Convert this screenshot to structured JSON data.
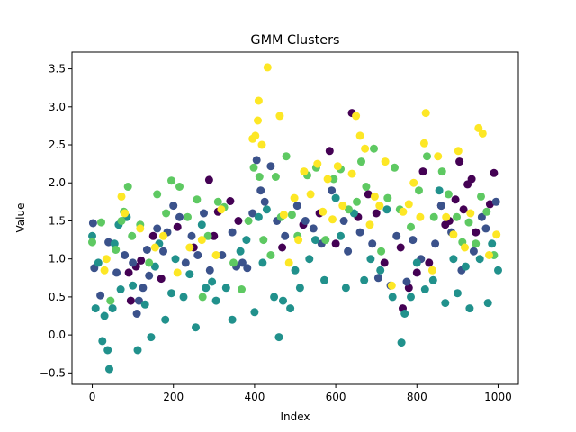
{
  "chart_data": {
    "type": "scatter",
    "title": "GMM Clusters",
    "xlabel": "Index",
    "ylabel": "Value",
    "xlim": [
      -50,
      1050
    ],
    "ylim": [
      -0.65,
      3.72
    ],
    "xticks": [
      0,
      200,
      400,
      600,
      800,
      1000
    ],
    "yticks": [
      -0.5,
      0.0,
      0.5,
      1.0,
      1.5,
      2.0,
      2.5,
      3.0,
      3.5
    ],
    "ytick_labels": [
      "−0.5",
      "0.0",
      "0.5",
      "1.0",
      "1.5",
      "2.0",
      "2.5",
      "3.0",
      "3.5"
    ],
    "grid": false,
    "legend": "none",
    "n_points": 1000,
    "cluster_colors": [
      "#440154",
      "#3b528b",
      "#21918c",
      "#5ec962",
      "#fde725"
    ],
    "series": [
      {
        "cluster": 0,
        "color": "#440154",
        "points": [
          [
            90,
            0.82
          ],
          [
            95,
            0.45
          ],
          [
            108,
            0.9
          ],
          [
            120,
            0.98
          ],
          [
            150,
            1.3
          ],
          [
            170,
            0.74
          ],
          [
            210,
            1.42
          ],
          [
            250,
            1.15
          ],
          [
            300,
            1.3
          ],
          [
            288,
            2.04
          ],
          [
            310,
            1.62
          ],
          [
            340,
            1.76
          ],
          [
            360,
            1.5
          ],
          [
            468,
            1.15
          ],
          [
            520,
            1.45
          ],
          [
            560,
            1.6
          ],
          [
            585,
            2.42
          ],
          [
            600,
            1.2
          ],
          [
            640,
            2.92
          ],
          [
            655,
            1.55
          ],
          [
            680,
            1.85
          ],
          [
            700,
            1.6
          ],
          [
            720,
            0.95
          ],
          [
            760,
            1.15
          ],
          [
            765,
            0.35
          ],
          [
            780,
            0.62
          ],
          [
            800,
            0.82
          ],
          [
            815,
            2.15
          ],
          [
            830,
            0.95
          ],
          [
            860,
            1.7
          ],
          [
            870,
            1.45
          ],
          [
            880,
            1.5
          ],
          [
            895,
            1.78
          ],
          [
            905,
            2.28
          ],
          [
            915,
            1.65
          ],
          [
            925,
            1.98
          ],
          [
            935,
            2.05
          ],
          [
            945,
            1.35
          ],
          [
            980,
            1.72
          ],
          [
            990,
            2.13
          ]
        ]
      },
      {
        "cluster": 1,
        "color": "#3b528b",
        "points": [
          [
            2,
            1.47
          ],
          [
            5,
            0.88
          ],
          [
            20,
            0.52
          ],
          [
            40,
            1.22
          ],
          [
            60,
            0.82
          ],
          [
            80,
            1.05
          ],
          [
            100,
            0.95
          ],
          [
            110,
            0.28
          ],
          [
            115,
            0.45
          ],
          [
            125,
            0.62
          ],
          [
            135,
            1.12
          ],
          [
            140,
            0.78
          ],
          [
            160,
            1.4
          ],
          [
            175,
            1.1
          ],
          [
            185,
            1.35
          ],
          [
            200,
            1.7
          ],
          [
            215,
            1.55
          ],
          [
            230,
            0.95
          ],
          [
            245,
            1.3
          ],
          [
            260,
            1.05
          ],
          [
            275,
            1.6
          ],
          [
            290,
            0.85
          ],
          [
            320,
            1.05
          ],
          [
            345,
            1.35
          ],
          [
            355,
            0.9
          ],
          [
            370,
            0.95
          ],
          [
            382,
            0.88
          ],
          [
            395,
            1.6
          ],
          [
            405,
            2.3
          ],
          [
            415,
            1.9
          ],
          [
            425,
            1.75
          ],
          [
            440,
            2.22
          ],
          [
            455,
            1.5
          ],
          [
            475,
            1.3
          ],
          [
            505,
            1.7
          ],
          [
            525,
            1.5
          ],
          [
            545,
            1.4
          ],
          [
            565,
            1.2
          ],
          [
            590,
            1.9
          ],
          [
            620,
            1.5
          ],
          [
            630,
            1.1
          ],
          [
            660,
            1.35
          ],
          [
            690,
            1.2
          ],
          [
            705,
            0.75
          ],
          [
            735,
            0.65
          ],
          [
            750,
            1.3
          ],
          [
            775,
            0.7
          ],
          [
            790,
            1.25
          ],
          [
            810,
            1.0
          ],
          [
            845,
            1.2
          ],
          [
            860,
            1.7
          ],
          [
            885,
            1.35
          ],
          [
            910,
            0.85
          ],
          [
            940,
            1.1
          ],
          [
            960,
            1.55
          ],
          [
            970,
            1.4
          ],
          [
            995,
            1.75
          ]
        ]
      },
      {
        "cluster": 2,
        "color": "#21918c",
        "points": [
          [
            0,
            1.3
          ],
          [
            8,
            0.35
          ],
          [
            15,
            0.95
          ],
          [
            25,
            -0.08
          ],
          [
            30,
            0.25
          ],
          [
            38,
            -0.2
          ],
          [
            42,
            -0.45
          ],
          [
            50,
            0.35
          ],
          [
            55,
            1.2
          ],
          [
            65,
            1.45
          ],
          [
            70,
            0.6
          ],
          [
            85,
            1.55
          ],
          [
            100,
            0.65
          ],
          [
            112,
            -0.2
          ],
          [
            130,
            0.4
          ],
          [
            145,
            -0.03
          ],
          [
            155,
            0.9
          ],
          [
            165,
            1.2
          ],
          [
            180,
            0.2
          ],
          [
            195,
            0.55
          ],
          [
            205,
            1.0
          ],
          [
            225,
            0.5
          ],
          [
            240,
            0.8
          ],
          [
            255,
            0.1
          ],
          [
            270,
            1.45
          ],
          [
            280,
            0.62
          ],
          [
            295,
            0.7
          ],
          [
            305,
            0.45
          ],
          [
            330,
            0.62
          ],
          [
            345,
            0.2
          ],
          [
            365,
            1.1
          ],
          [
            380,
            1.25
          ],
          [
            400,
            0.3
          ],
          [
            410,
            1.55
          ],
          [
            420,
            0.95
          ],
          [
            430,
            1.65
          ],
          [
            448,
            0.5
          ],
          [
            460,
            -0.03
          ],
          [
            470,
            0.45
          ],
          [
            488,
            0.35
          ],
          [
            500,
            0.85
          ],
          [
            512,
            0.62
          ],
          [
            535,
            1.0
          ],
          [
            550,
            1.25
          ],
          [
            572,
            0.72
          ],
          [
            600,
            1.8
          ],
          [
            612,
            1.3
          ],
          [
            625,
            0.62
          ],
          [
            645,
            1.6
          ],
          [
            670,
            0.72
          ],
          [
            686,
            1.0
          ],
          [
            710,
            0.85
          ],
          [
            726,
            1.65
          ],
          [
            740,
            0.5
          ],
          [
            762,
            -0.1
          ],
          [
            770,
            0.28
          ],
          [
            785,
            0.5
          ],
          [
            800,
            0.95
          ],
          [
            820,
            0.6
          ],
          [
            840,
            0.72
          ],
          [
            855,
            1.9
          ],
          [
            870,
            0.42
          ],
          [
            890,
            1.0
          ],
          [
            900,
            0.55
          ],
          [
            920,
            0.9
          ],
          [
            930,
            0.35
          ],
          [
            955,
            1.0
          ],
          [
            975,
            0.42
          ],
          [
            985,
            1.2
          ],
          [
            1000,
            0.85
          ]
        ]
      },
      {
        "cluster": 3,
        "color": "#5ec962",
        "points": [
          [
            0,
            1.22
          ],
          [
            22,
            1.48
          ],
          [
            45,
            0.45
          ],
          [
            58,
            1.12
          ],
          [
            72,
            1.5
          ],
          [
            78,
            1.62
          ],
          [
            88,
            1.95
          ],
          [
            98,
            1.3
          ],
          [
            118,
            1.45
          ],
          [
            140,
            0.95
          ],
          [
            160,
            1.85
          ],
          [
            182,
            1.6
          ],
          [
            195,
            2.03
          ],
          [
            215,
            1.95
          ],
          [
            235,
            1.55
          ],
          [
            258,
            1.78
          ],
          [
            272,
            0.5
          ],
          [
            285,
            1.3
          ],
          [
            310,
            1.75
          ],
          [
            325,
            1.68
          ],
          [
            348,
            0.95
          ],
          [
            368,
            0.6
          ],
          [
            385,
            1.5
          ],
          [
            398,
            2.2
          ],
          [
            412,
            2.08
          ],
          [
            422,
            1.25
          ],
          [
            440,
            1.05
          ],
          [
            452,
            2.08
          ],
          [
            465,
            1.55
          ],
          [
            478,
            2.35
          ],
          [
            492,
            1.58
          ],
          [
            506,
            1.3
          ],
          [
            530,
            2.1
          ],
          [
            552,
            2.2
          ],
          [
            575,
            1.25
          ],
          [
            595,
            2.05
          ],
          [
            612,
            2.18
          ],
          [
            632,
            1.65
          ],
          [
            652,
            1.75
          ],
          [
            663,
            2.28
          ],
          [
            675,
            1.95
          ],
          [
            694,
            2.45
          ],
          [
            712,
            1.1
          ],
          [
            728,
            1.8
          ],
          [
            745,
            2.2
          ],
          [
            758,
            1.65
          ],
          [
            785,
            1.42
          ],
          [
            805,
            1.9
          ],
          [
            825,
            2.35
          ],
          [
            842,
            1.55
          ],
          [
            862,
            2.15
          ],
          [
            878,
            1.85
          ],
          [
            898,
            1.55
          ],
          [
            912,
            1.22
          ],
          [
            928,
            1.48
          ],
          [
            945,
            1.2
          ],
          [
            958,
            1.82
          ],
          [
            972,
            1.62
          ],
          [
            990,
            1.05
          ]
        ]
      },
      {
        "cluster": 4,
        "color": "#fde725",
        "points": [
          [
            30,
            0.85
          ],
          [
            35,
            1.0
          ],
          [
            72,
            1.82
          ],
          [
            80,
            1.6
          ],
          [
            118,
            1.4
          ],
          [
            155,
            1.15
          ],
          [
            175,
            1.3
          ],
          [
            210,
            0.82
          ],
          [
            240,
            1.15
          ],
          [
            270,
            1.25
          ],
          [
            305,
            1.05
          ],
          [
            318,
            1.65
          ],
          [
            395,
            2.58
          ],
          [
            402,
            2.62
          ],
          [
            408,
            2.82
          ],
          [
            410,
            3.08
          ],
          [
            418,
            2.5
          ],
          [
            432,
            3.52
          ],
          [
            462,
            2.88
          ],
          [
            472,
            1.58
          ],
          [
            485,
            0.95
          ],
          [
            498,
            1.8
          ],
          [
            508,
            1.25
          ],
          [
            522,
            2.15
          ],
          [
            538,
            1.85
          ],
          [
            555,
            2.25
          ],
          [
            568,
            1.62
          ],
          [
            580,
            2.05
          ],
          [
            592,
            1.52
          ],
          [
            605,
            2.22
          ],
          [
            617,
            1.7
          ],
          [
            640,
            2.12
          ],
          [
            650,
            2.88
          ],
          [
            660,
            2.62
          ],
          [
            672,
            2.45
          ],
          [
            684,
            1.45
          ],
          [
            696,
            1.82
          ],
          [
            708,
            1.7
          ],
          [
            722,
            2.28
          ],
          [
            738,
            0.65
          ],
          [
            766,
            1.62
          ],
          [
            780,
            1.72
          ],
          [
            792,
            2.0
          ],
          [
            808,
            1.55
          ],
          [
            818,
            2.52
          ],
          [
            822,
            2.92
          ],
          [
            838,
            0.85
          ],
          [
            852,
            2.35
          ],
          [
            872,
            1.55
          ],
          [
            890,
            1.32
          ],
          [
            902,
            2.42
          ],
          [
            918,
            1.15
          ],
          [
            932,
            1.6
          ],
          [
            952,
            2.72
          ],
          [
            962,
            2.65
          ],
          [
            978,
            1.05
          ],
          [
            996,
            1.32
          ]
        ]
      }
    ]
  }
}
